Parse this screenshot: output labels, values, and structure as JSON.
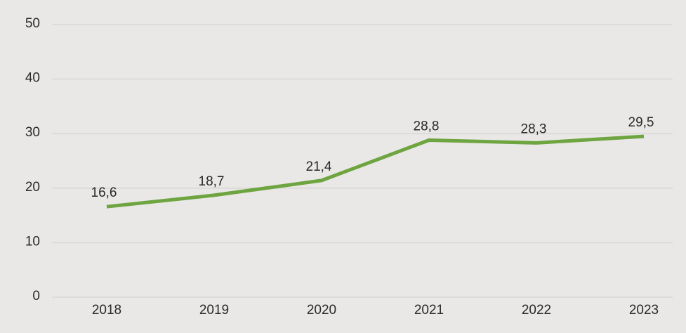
{
  "chart_data": {
    "type": "line",
    "title": "",
    "xlabel": "",
    "ylabel": "",
    "x_tick_labels": [
      "2018",
      "2019",
      "2020",
      "2021",
      "2022",
      "2023"
    ],
    "values": [
      16.6,
      18.7,
      21.4,
      28.8,
      28.3,
      29.5
    ],
    "point_labels": [
      "16,6",
      "18,7",
      "21,4",
      "28,8",
      "28,3",
      "29,5"
    ],
    "y_ticks": [
      0,
      10,
      20,
      30,
      40,
      50
    ],
    "y_tick_labels": [
      "0",
      "10",
      "20",
      "30",
      "40",
      "50"
    ],
    "ylim": [
      0,
      50
    ],
    "grid": true,
    "markers": false,
    "legend_position": "none",
    "colors": {
      "line": "#6ea540",
      "background": "#e9e8e6",
      "gridline": "#dbdad7",
      "text": "#2a2a2a"
    }
  }
}
